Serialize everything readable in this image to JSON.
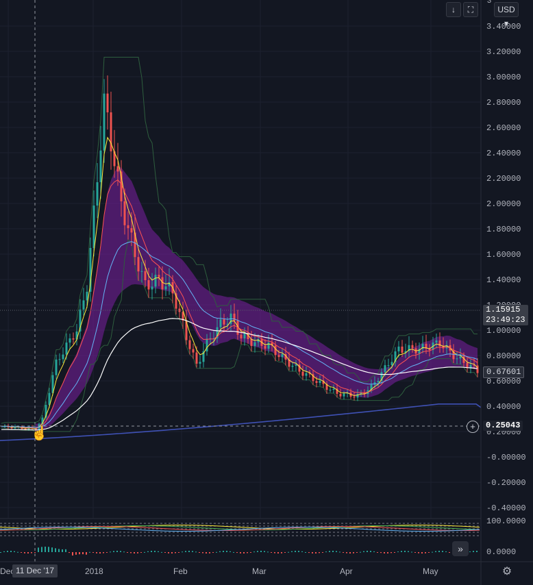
{
  "toolbar": {
    "down_arrow": "↓",
    "fullscreen": "⛶",
    "currency": "USD ▾",
    "scale_top_label": "3"
  },
  "price_axis": {
    "ticks": [
      "3.40000",
      "3.20000",
      "3.00000",
      "2.80000",
      "2.60000",
      "2.40000",
      "2.20000",
      "2.00000",
      "1.80000",
      "1.60000",
      "1.40000",
      "1.20000",
      "1.00000",
      "0.80000",
      "0.60000",
      "0.40000",
      "0.20000",
      "-0.00000",
      "-0.20000",
      "-0.40000"
    ],
    "tick_values": [
      3.4,
      3.2,
      3.0,
      2.8,
      2.6,
      2.4,
      2.2,
      2.0,
      1.8,
      1.6,
      1.4,
      1.2,
      1.0,
      0.8,
      0.6,
      0.4,
      0.2,
      0.0,
      -0.2,
      -0.4
    ],
    "current_price": "1.15915",
    "countdown": "23:49:23",
    "ma_price": "0.67601",
    "crosshair_price": "0.25043",
    "osc_top": "100.0000",
    "osc_bottom": "0.0000"
  },
  "time_axis": {
    "labels": [
      "Dec",
      "2018",
      "Feb",
      "Mar",
      "Apr",
      "May"
    ],
    "crosshair_date": "11 Dec '17"
  },
  "colors": {
    "background": "#131722",
    "up": "#26a69a",
    "down": "#ef5350",
    "cloud": "#7b1fa2",
    "ma_white": "#ffffff",
    "ma_blue": "#3f51b5",
    "ma_yellow": "#ffeb3b",
    "ma_red": "#ff5252",
    "ma_light_blue": "#64b5f6",
    "price_tag": "#3a3e48",
    "ma_tag": "#2a2e39"
  },
  "icons": {
    "scroll_right": "»",
    "settings": "⚙",
    "add": "+",
    "hand": "☝"
  }
}
